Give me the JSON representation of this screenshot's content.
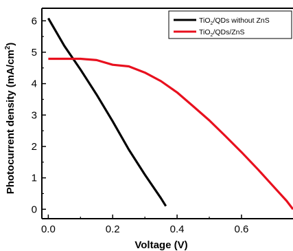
{
  "chart_data": {
    "type": "line",
    "xlabel": "Voltage (V)",
    "ylabel_main": "Photocurrent density (mA/cm",
    "ylabel_sup": "2",
    "ylabel_end": ")",
    "xlim": [
      -0.02,
      0.76
    ],
    "ylim": [
      -0.3,
      6.4
    ],
    "xticks": [
      0.0,
      0.2,
      0.4,
      0.6
    ],
    "xtick_labels": [
      "0.0",
      "0.2",
      "0.4",
      "0.6"
    ],
    "yticks": [
      0,
      1,
      2,
      3,
      4,
      5,
      6
    ],
    "ytick_labels": [
      "0",
      "1",
      "2",
      "3",
      "4",
      "5",
      "6"
    ],
    "grid": false,
    "legend_position": "top-right",
    "series": [
      {
        "name_main": "TiO",
        "name_sub": "2",
        "name_rest": "/QDs without ZnS",
        "color": "#000000",
        "x": [
          0.0,
          0.05,
          0.1,
          0.15,
          0.2,
          0.25,
          0.3,
          0.35,
          0.365
        ],
        "y": [
          6.08,
          5.2,
          4.45,
          3.65,
          2.8,
          1.9,
          1.1,
          0.35,
          0.1
        ]
      },
      {
        "name_main": "TiO",
        "name_sub": "2",
        "name_rest": "/QDs/ZnS",
        "color": "#e8101e",
        "x": [
          0.0,
          0.05,
          0.1,
          0.15,
          0.2,
          0.25,
          0.3,
          0.35,
          0.4,
          0.45,
          0.5,
          0.55,
          0.6,
          0.65,
          0.7,
          0.74,
          0.76
        ],
        "y": [
          4.79,
          4.79,
          4.79,
          4.75,
          4.6,
          4.55,
          4.35,
          4.08,
          3.72,
          3.28,
          2.83,
          2.33,
          1.82,
          1.28,
          0.72,
          0.27,
          0.0
        ]
      }
    ]
  }
}
